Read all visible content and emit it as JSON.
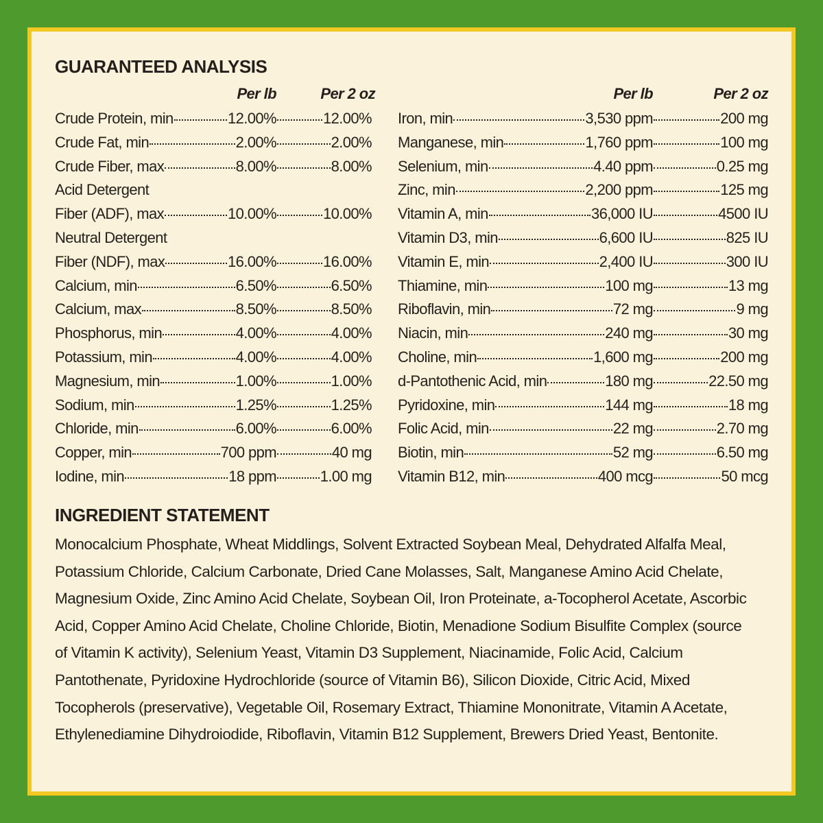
{
  "guaranteed_analysis": {
    "title": "GUARANTEED ANALYSIS",
    "left": {
      "headers": [
        "Per lb",
        "Per 2 oz"
      ],
      "rows": [
        {
          "name": [
            "Crude Protein, min"
          ],
          "per_lb": "12.00%",
          "per_2oz": "12.00%"
        },
        {
          "name": [
            "Crude Fat, min"
          ],
          "per_lb": "2.00%",
          "per_2oz": "2.00%"
        },
        {
          "name": [
            "Crude Fiber, max"
          ],
          "per_lb": "8.00%",
          "per_2oz": "8.00%"
        },
        {
          "name": [
            "Acid Detergent",
            "Fiber (ADF), max"
          ],
          "per_lb": "10.00%",
          "per_2oz": "10.00%"
        },
        {
          "name": [
            "Neutral Detergent",
            "Fiber (NDF), max"
          ],
          "per_lb": "16.00%",
          "per_2oz": "16.00%"
        },
        {
          "name": [
            "Calcium, min"
          ],
          "per_lb": "6.50%",
          "per_2oz": "6.50%"
        },
        {
          "name": [
            "Calcium, max"
          ],
          "per_lb": "8.50%",
          "per_2oz": "8.50%"
        },
        {
          "name": [
            "Phosphorus, min"
          ],
          "per_lb": "4.00%",
          "per_2oz": "4.00%"
        },
        {
          "name": [
            "Potassium, min"
          ],
          "per_lb": "4.00%",
          "per_2oz": "4.00%"
        },
        {
          "name": [
            "Magnesium, min"
          ],
          "per_lb": "1.00%",
          "per_2oz": "1.00%"
        },
        {
          "name": [
            "Sodium, min"
          ],
          "per_lb": "1.25%",
          "per_2oz": "1.25%"
        },
        {
          "name": [
            "Chloride, min"
          ],
          "per_lb": "6.00%",
          "per_2oz": "6.00%"
        },
        {
          "name": [
            "Copper, min"
          ],
          "per_lb": "700 ppm",
          "per_2oz": "40 mg"
        },
        {
          "name": [
            "Iodine, min"
          ],
          "per_lb": "18 ppm",
          "per_2oz": "1.00 mg"
        }
      ]
    },
    "right": {
      "headers": [
        "Per lb",
        "Per 2 oz"
      ],
      "rows": [
        {
          "name": [
            "Iron, min"
          ],
          "per_lb": "3,530 ppm",
          "per_2oz": "200 mg"
        },
        {
          "name": [
            "Manganese, min"
          ],
          "per_lb": "1,760 ppm",
          "per_2oz": "100 mg"
        },
        {
          "name": [
            "Selenium, min"
          ],
          "per_lb": "4.40 ppm",
          "per_2oz": "0.25 mg"
        },
        {
          "name": [
            "Zinc, min"
          ],
          "per_lb": "2,200 ppm",
          "per_2oz": "125 mg"
        },
        {
          "name": [
            "Vitamin A, min"
          ],
          "per_lb": "36,000 IU",
          "per_2oz": "4500 IU"
        },
        {
          "name": [
            "Vitamin D3, min"
          ],
          "per_lb": "6,600 IU",
          "per_2oz": "825 IU"
        },
        {
          "name": [
            "Vitamin E, min"
          ],
          "per_lb": "2,400 IU",
          "per_2oz": "300 IU"
        },
        {
          "name": [
            "Thiamine, min"
          ],
          "per_lb": "100 mg",
          "per_2oz": "13 mg"
        },
        {
          "name": [
            "Riboflavin, min"
          ],
          "per_lb": "72 mg",
          "per_2oz": "9 mg"
        },
        {
          "name": [
            "Niacin, min"
          ],
          "per_lb": "240 mg",
          "per_2oz": "30 mg"
        },
        {
          "name": [
            "Choline, min"
          ],
          "per_lb": "1,600 mg",
          "per_2oz": "200 mg"
        },
        {
          "name": [
            "d-Pantothenic Acid, min"
          ],
          "per_lb": "180 mg",
          "per_2oz": "22.50 mg"
        },
        {
          "name": [
            "Pyridoxine, min"
          ],
          "per_lb": "144 mg",
          "per_2oz": "18 mg"
        },
        {
          "name": [
            "Folic Acid, min"
          ],
          "per_lb": "22 mg",
          "per_2oz": "2.70 mg"
        },
        {
          "name": [
            "Biotin, min"
          ],
          "per_lb": "52 mg",
          "per_2oz": "6.50 mg"
        },
        {
          "name": [
            "Vitamin B12, min"
          ],
          "per_lb": "400 mcg",
          "per_2oz": "50 mcg"
        }
      ]
    }
  },
  "ingredient_statement": {
    "title": "INGREDIENT STATEMENT",
    "text": "Monocalcium Phosphate, Wheat Middlings, Solvent Extracted Soybean Meal, Dehydrated Alfalfa Meal, Potassium Chloride, Calcium Carbonate, Dried Cane Molasses, Salt, Manganese Amino Acid Chelate, Magnesium Oxide, Zinc Amino Acid Chelate, Soybean Oil, Iron Proteinate, a-Tocopherol Acetate, Ascorbic Acid, Copper Amino Acid Chelate, Choline Chloride, Biotin, Menadione Sodium Bisulfite Complex (source of Vitamin K activity), Selenium Yeast, Vitamin D3 Supplement, Niacinamide, Folic Acid, Calcium Pantothenate, Pyridoxine Hydrochloride (source of Vitamin B6), Silicon Dioxide, Citric Acid, Mixed Tocopherols (preservative), Vegetable Oil, Rosemary Extract, Thiamine Mononitrate, Vitamin A Acetate, Ethylenediamine Dihydroiodide, Riboflavin, Vitamin B12 Supplement, Brewers Dried Yeast, Bentonite."
  }
}
